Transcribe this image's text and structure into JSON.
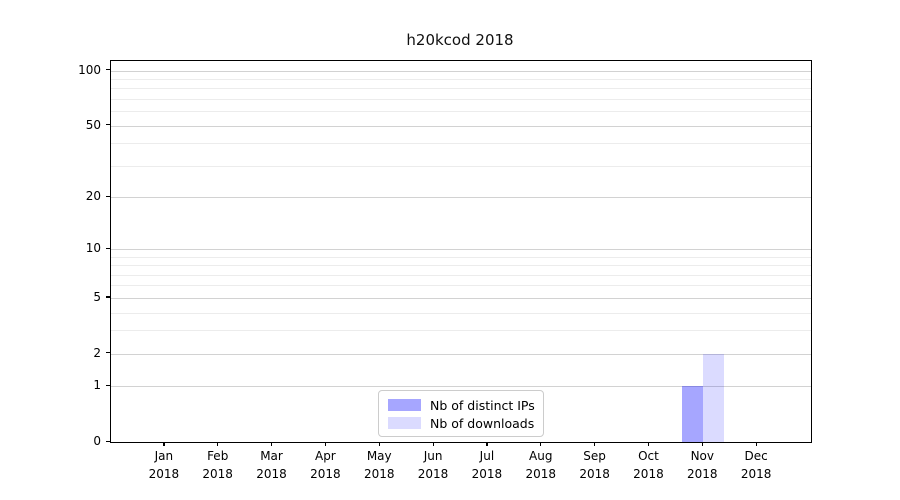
{
  "chart_data": {
    "type": "bar",
    "title": "h20kcod 2018",
    "categories": [
      "Jan 2018",
      "Feb 2018",
      "Mar 2018",
      "Apr 2018",
      "May 2018",
      "Jun 2018",
      "Jul 2018",
      "Aug 2018",
      "Sep 2018",
      "Oct 2018",
      "Nov 2018",
      "Dec 2018"
    ],
    "series": [
      {
        "name": "Nb of distinct IPs",
        "values": [
          0,
          0,
          0,
          0,
          0,
          0,
          0,
          0,
          0,
          0,
          1,
          0
        ],
        "color": "rgba(0,0,255,0.35)"
      },
      {
        "name": "Nb of downloads",
        "values": [
          0,
          0,
          0,
          0,
          0,
          0,
          0,
          0,
          0,
          0,
          2,
          0
        ],
        "color": "rgba(0,0,255,0.14)"
      }
    ],
    "xlabel": "",
    "ylabel": "",
    "yscale": "log1p",
    "ylim": [
      0,
      113
    ],
    "yticks_major": [
      0,
      1,
      2,
      5,
      10,
      20,
      50,
      100
    ],
    "yticks_minor": [
      3,
      4,
      6,
      7,
      8,
      9,
      30,
      40,
      60,
      70,
      80,
      90
    ],
    "grid": true,
    "legend": {
      "position": "inside-bottom-center",
      "entries": [
        "Nb of distinct IPs",
        "Nb of downloads"
      ]
    }
  }
}
